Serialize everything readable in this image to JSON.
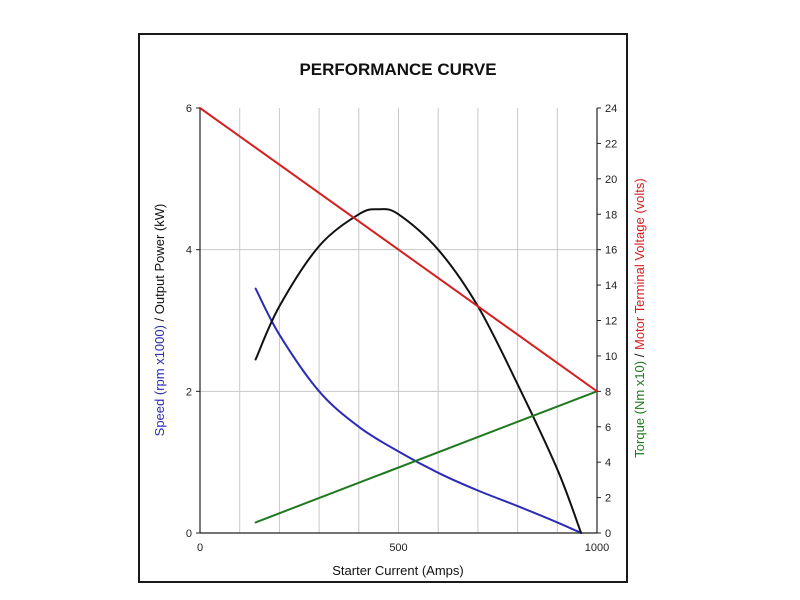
{
  "chart_data": {
    "type": "line",
    "title": "PERFORMANCE CURVE",
    "xlabel": "Starter Current (Amps)",
    "xlim": [
      0,
      1000
    ],
    "x_ticks": [
      "0",
      "500",
      "1000"
    ],
    "x_gridlines_every": 100,
    "ylabel_left": {
      "speed": "Speed (rpm x1000)",
      "separator": "/",
      "power": "Output Power (kW)"
    },
    "ylim_left": [
      0,
      6
    ],
    "y_ticks_left": [
      "0",
      "2",
      "4",
      "6"
    ],
    "ylabel_right": {
      "torque": "Torque (Nm x10)",
      "separator": "/",
      "voltage": "Motor Terminal Voltage (volts)"
    },
    "ylim_right": [
      0,
      24
    ],
    "y_ticks_right": [
      "0",
      "2",
      "4",
      "6",
      "8",
      "10",
      "12",
      "14",
      "16",
      "18",
      "20",
      "22",
      "24"
    ],
    "grid": true,
    "legend": "none",
    "colors": {
      "speed": "#2b2bb8",
      "power": "#111111",
      "torque": "#1f7a1f",
      "voltage": "#d42020"
    },
    "series": [
      {
        "key": "speed",
        "axis": "left",
        "x": [
          140,
          200,
          300,
          400,
          500,
          600,
          700,
          800,
          900,
          960
        ],
        "y": [
          3.45,
          2.8,
          2.0,
          1.5,
          1.15,
          0.85,
          0.6,
          0.38,
          0.15,
          0.0
        ]
      },
      {
        "key": "power",
        "axis": "left",
        "x": [
          140,
          200,
          300,
          400,
          450,
          500,
          600,
          700,
          800,
          900,
          960
        ],
        "y": [
          2.45,
          3.2,
          4.05,
          4.5,
          4.57,
          4.5,
          4.0,
          3.2,
          2.1,
          0.9,
          0.0
        ]
      },
      {
        "key": "torque",
        "axis": "right",
        "x": [
          140,
          1000
        ],
        "y": [
          0.6,
          8.0
        ]
      },
      {
        "key": "voltage",
        "axis": "right",
        "x": [
          0,
          1000
        ],
        "y": [
          24,
          8
        ]
      }
    ]
  }
}
